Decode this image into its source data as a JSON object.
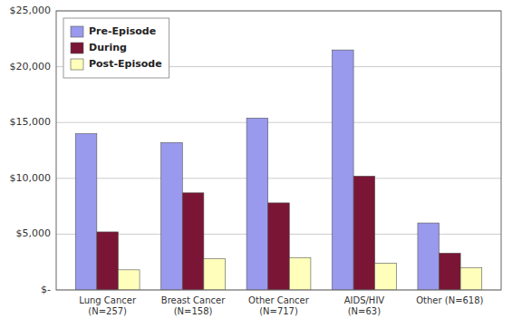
{
  "chart_data": {
    "type": "bar",
    "categories": [
      "Lung Cancer\n(N=257)",
      "Breast Cancer\n(N=158)",
      "Other Cancer\n(N=717)",
      "AIDS/HIV\n(N=63)",
      "Other (N=618)"
    ],
    "series": [
      {
        "name": "Pre-Episode",
        "color": "#9999ee",
        "values": [
          14000,
          13200,
          15400,
          21500,
          6000
        ]
      },
      {
        "name": "During",
        "color": "#7a1535",
        "values": [
          5200,
          8700,
          7800,
          10200,
          3300
        ]
      },
      {
        "name": "Post-Episode",
        "color": "#ffffbb",
        "values": [
          1800,
          2800,
          2900,
          2400,
          2000
        ]
      }
    ],
    "ylim": [
      0,
      25000
    ],
    "yticks": [
      {
        "value": 0,
        "label": "$-"
      },
      {
        "value": 5000,
        "label": "$5,000"
      },
      {
        "value": 10000,
        "label": "$10,000"
      },
      {
        "value": 15000,
        "label": "$15,000"
      },
      {
        "value": 20000,
        "label": "$20,000"
      },
      {
        "value": 25000,
        "label": "$25,000"
      }
    ],
    "grid": true,
    "legend": "upper-left"
  }
}
